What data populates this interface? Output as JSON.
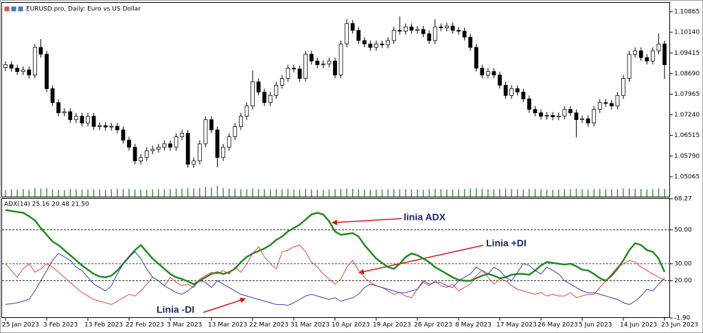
{
  "chart_data": [
    {
      "type": "candlestick",
      "title": "EURUSD.pro, Daily:  Euro vs US Dollar",
      "categories": [
        "25 Jan 2023",
        null,
        null,
        null,
        null,
        null,
        null,
        "3 Feb 2023",
        null,
        null,
        null,
        null,
        null,
        null,
        "13 Feb 2023",
        null,
        null,
        null,
        null,
        null,
        null,
        "22 Feb 2023",
        null,
        null,
        null,
        null,
        null,
        null,
        "3 Mar 2023",
        null,
        null,
        null,
        null,
        null,
        null,
        "13 Mar 2023",
        null,
        null,
        null,
        null,
        null,
        null,
        "22 Mar 2023",
        null,
        null,
        null,
        null,
        null,
        null,
        "31 Mar 2023",
        null,
        null,
        null,
        null,
        null,
        null,
        "10 Apr 2023",
        null,
        null,
        null,
        null,
        null,
        null,
        "19 Apr 2023",
        null,
        null,
        null,
        null,
        null,
        null,
        "28 Apr 2023",
        null,
        null,
        null,
        null,
        null,
        null,
        "8 May 2023",
        null,
        null,
        null,
        null,
        null,
        null,
        "17 May 2023",
        null,
        null,
        null,
        null,
        null,
        null,
        "26 May 2023",
        null,
        null,
        null,
        null,
        null,
        null,
        "5 Jun 2023",
        null,
        null,
        null,
        null,
        null,
        null,
        "14 Jun 2023",
        null,
        null,
        null,
        null,
        null,
        null,
        "23 Jun 2023"
      ],
      "open": [
        1.089,
        1.09,
        1.0888,
        1.0876,
        1.0882,
        1.0864,
        1.0961,
        1.0937,
        1.0816,
        1.0767,
        1.0731,
        1.0735,
        1.0707,
        1.0719,
        1.0695,
        1.0719,
        1.0683,
        1.0686,
        1.0681,
        1.0684,
        1.0671,
        1.0635,
        1.061,
        1.0562,
        1.0574,
        1.0598,
        1.0603,
        1.061,
        1.0622,
        1.061,
        1.0647,
        1.0659,
        1.055,
        1.0562,
        1.0622,
        1.0707,
        1.0671,
        1.0574,
        1.061,
        1.0647,
        1.0683,
        1.0719,
        1.0755,
        1.084,
        1.0804,
        1.0767,
        1.0792,
        1.0828,
        1.0852,
        1.0888,
        1.0885,
        1.0852,
        1.0937,
        1.0913,
        1.09,
        1.0903,
        1.0913,
        1.0864,
        1.0973,
        1.1045,
        1.1021,
        1.0985,
        1.0973,
        1.0961,
        1.0973,
        1.097,
        1.0985,
        1.1021,
        1.1018,
        1.1033,
        1.1021,
        1.1024,
        1.1009,
        1.0985,
        1.1033,
        1.103,
        1.1036,
        1.1021,
        1.1018,
        1.0997,
        1.0961,
        1.0888,
        1.0864,
        1.0876,
        1.0864,
        1.0828,
        1.0792,
        1.0816,
        1.0804,
        1.078,
        1.0743,
        1.0731,
        1.0719,
        1.0722,
        1.0717,
        1.072,
        1.0743,
        1.0731,
        1.0707,
        1.071,
        1.0695,
        1.0743,
        1.0767,
        1.0764,
        1.0755,
        1.0792,
        1.0852,
        1.0937,
        1.0949,
        1.0925,
        1.0913,
        1.0949,
        1.0973
      ],
      "high": [
        1.0912,
        1.0912,
        1.09,
        1.0894,
        1.0894,
        1.0973,
        1.099,
        1.0949,
        1.0828,
        1.0779,
        1.0747,
        1.0747,
        1.0731,
        1.0731,
        1.0731,
        1.0731,
        1.0698,
        1.0698,
        1.0696,
        1.0696,
        1.0683,
        1.0647,
        1.0622,
        1.0586,
        1.061,
        1.0615,
        1.0622,
        1.0634,
        1.0634,
        1.0659,
        1.0671,
        1.0671,
        1.0574,
        1.0634,
        1.0719,
        1.0719,
        1.0683,
        1.0622,
        1.0659,
        1.0695,
        1.0731,
        1.0767,
        1.088,
        1.0852,
        1.0816,
        1.0804,
        1.084,
        1.0864,
        1.09,
        1.09,
        1.0897,
        1.0949,
        1.0949,
        1.0925,
        1.0915,
        1.0925,
        1.0925,
        1.0985,
        1.106,
        1.1057,
        1.1033,
        1.0997,
        1.0985,
        1.0985,
        1.0985,
        1.0997,
        1.1033,
        1.107,
        1.1045,
        1.1045,
        1.1036,
        1.1036,
        1.1021,
        1.106,
        1.1045,
        1.1048,
        1.1048,
        1.1033,
        1.103,
        1.1009,
        1.0973,
        1.09,
        1.0888,
        1.0888,
        1.0876,
        1.084,
        1.0828,
        1.0828,
        1.0816,
        1.0792,
        1.0755,
        1.0743,
        1.0734,
        1.0734,
        1.0732,
        1.0755,
        1.0755,
        1.0743,
        1.0722,
        1.0722,
        1.0755,
        1.0779,
        1.0779,
        1.0776,
        1.0804,
        1.0864,
        1.0949,
        1.0961,
        1.0961,
        1.0937,
        1.0961,
        1.101,
        1.0985
      ],
      "low": [
        1.0878,
        1.0876,
        1.0864,
        1.0864,
        1.0852,
        1.0852,
        1.0925,
        1.0804,
        1.0755,
        1.0719,
        1.0719,
        1.0695,
        1.0695,
        1.0683,
        1.0683,
        1.0671,
        1.0671,
        1.0669,
        1.0669,
        1.0659,
        1.0623,
        1.0598,
        1.055,
        1.055,
        1.0562,
        1.0586,
        1.0591,
        1.0598,
        1.0598,
        1.0598,
        1.0635,
        1.0538,
        1.0538,
        1.055,
        1.061,
        1.0659,
        1.054,
        1.0562,
        1.0598,
        1.0635,
        1.0671,
        1.0707,
        1.0743,
        1.0792,
        1.0755,
        1.0755,
        1.078,
        1.0816,
        1.084,
        1.0873,
        1.084,
        1.084,
        1.0901,
        1.0888,
        1.0888,
        1.0891,
        1.0852,
        1.0852,
        1.0961,
        1.1009,
        1.0973,
        1.0961,
        1.0949,
        1.0949,
        1.0958,
        1.0958,
        1.0973,
        1.1006,
        1.1006,
        1.1009,
        1.1009,
        1.0997,
        1.0973,
        1.0973,
        1.1018,
        1.1018,
        1.1009,
        1.1006,
        1.0985,
        1.0949,
        1.0876,
        1.0852,
        1.0852,
        1.0852,
        1.0816,
        1.078,
        1.078,
        1.0792,
        1.0768,
        1.0731,
        1.0719,
        1.0707,
        1.0707,
        1.0705,
        1.0705,
        1.0708,
        1.0719,
        1.0645,
        1.0695,
        1.0683,
        1.0683,
        1.0731,
        1.0752,
        1.0743,
        1.0743,
        1.078,
        1.084,
        1.0925,
        1.0913,
        1.0901,
        1.0901,
        1.0937,
        1.085
      ],
      "close": [
        1.09,
        1.0888,
        1.0876,
        1.0882,
        1.0864,
        1.0961,
        1.0937,
        1.0816,
        1.0767,
        1.0731,
        1.0735,
        1.0707,
        1.0719,
        1.0695,
        1.0719,
        1.0683,
        1.0686,
        1.0681,
        1.0684,
        1.0671,
        1.0635,
        1.061,
        1.0562,
        1.0574,
        1.0598,
        1.0603,
        1.061,
        1.0622,
        1.061,
        1.0647,
        1.0659,
        1.055,
        1.0562,
        1.0622,
        1.0707,
        1.0671,
        1.0574,
        1.061,
        1.0647,
        1.0683,
        1.0719,
        1.0755,
        1.084,
        1.0804,
        1.0767,
        1.0792,
        1.0828,
        1.0852,
        1.0888,
        1.0885,
        1.0852,
        1.0937,
        1.0913,
        1.09,
        1.0903,
        1.0913,
        1.0864,
        1.0973,
        1.1045,
        1.1021,
        1.0985,
        1.0973,
        1.0961,
        1.0973,
        1.097,
        1.0985,
        1.1021,
        1.1018,
        1.1033,
        1.1021,
        1.1024,
        1.1009,
        1.0985,
        1.1033,
        1.103,
        1.1036,
        1.1021,
        1.1018,
        1.0997,
        1.0961,
        1.0888,
        1.0864,
        1.0876,
        1.0864,
        1.0828,
        1.0792,
        1.0816,
        1.0804,
        1.078,
        1.0743,
        1.0731,
        1.0719,
        1.0722,
        1.0717,
        1.072,
        1.0743,
        1.0731,
        1.0707,
        1.071,
        1.0695,
        1.0743,
        1.0767,
        1.0764,
        1.0755,
        1.0792,
        1.0852,
        1.0937,
        1.0949,
        1.0925,
        1.0913,
        1.0949,
        1.0973,
        1.09
      ],
      "volume": [
        55,
        60,
        58,
        62,
        57,
        70,
        65,
        68,
        60,
        58,
        55,
        62,
        60,
        57,
        59,
        61,
        58,
        56,
        60,
        63,
        62,
        65,
        60,
        58,
        57,
        59,
        61,
        60,
        62,
        66,
        64,
        70,
        68,
        72,
        80,
        75,
        90,
        70,
        66,
        64,
        62,
        60,
        68,
        63,
        61,
        59,
        62,
        60,
        64,
        58,
        57,
        63,
        60,
        58,
        56,
        59,
        61,
        62,
        66,
        63,
        60,
        58,
        57,
        59,
        56,
        58,
        61,
        60,
        62,
        59,
        58,
        57,
        60,
        63,
        61,
        59,
        58,
        60,
        62,
        66,
        70,
        64,
        61,
        60,
        62,
        65,
        63,
        61,
        60,
        64,
        62,
        60,
        58,
        57,
        59,
        63,
        61,
        66,
        60,
        58,
        62,
        64,
        60,
        59,
        61,
        66,
        68,
        64,
        62,
        60,
        63,
        67,
        65
      ],
      "candle_colors": {
        "up": "#ffffff",
        "down": "#000000",
        "outline": "#000000"
      },
      "volume_color": "#2e8b2e",
      "ylim": [
        1.04364,
        1.11179
      ],
      "yticks": [
        1.10865,
        {
          "value": 1.1014,
          "label": "1.10140"
        },
        1.09415,
        {
          "value": 1.0869,
          "label": "1.08690"
        },
        1.07965,
        {
          "value": 1.0724,
          "label": "1.07240"
        },
        1.06515,
        {
          "value": 1.0579,
          "label": "1.05790"
        },
        1.05065
      ]
    },
    {
      "type": "line",
      "title": "ADX(14) 25.16 20.48 21.50",
      "series": [
        {
          "name": "ADX",
          "color": "#1e8a1e",
          "width": 2.5,
          "values": [
            61.6,
            61,
            60.5,
            60,
            58,
            55.5,
            51,
            47,
            43,
            41,
            38,
            35,
            32,
            29,
            26.5,
            24,
            22.5,
            22,
            23,
            26,
            30,
            34,
            38,
            41,
            37,
            33,
            30,
            27,
            24,
            22,
            21,
            19.5,
            18,
            20,
            22,
            24,
            25,
            24,
            25,
            27,
            31,
            34,
            36,
            37.5,
            39,
            41,
            44,
            46,
            49,
            51,
            53,
            56,
            59,
            60,
            59,
            55,
            49,
            47,
            47.5,
            48,
            46,
            41,
            37,
            33,
            30.5,
            28,
            27,
            30,
            34,
            36,
            35,
            33,
            31,
            28,
            26,
            24,
            22,
            20.5,
            20,
            20,
            21.5,
            23,
            24,
            23,
            21.5,
            22,
            23.5,
            24,
            24,
            23.5,
            26,
            29,
            31,
            30.5,
            30,
            29.5,
            30,
            28.5,
            26.5,
            26,
            24,
            21.5,
            20,
            23,
            27,
            32,
            38,
            42,
            41,
            38,
            37,
            33,
            25.16
          ]
        },
        {
          "name": "+DI",
          "color": "#e0453a",
          "width": 1,
          "values": [
            30,
            26,
            22,
            27,
            30,
            25,
            27,
            30,
            28,
            25,
            22,
            19,
            16,
            13,
            11,
            9,
            8,
            7,
            6,
            8,
            10,
            12,
            11,
            14,
            18,
            22,
            20,
            17,
            22,
            19,
            17,
            18,
            16,
            21,
            23,
            25,
            24,
            26,
            24,
            28,
            25,
            30,
            36,
            40,
            34,
            30,
            27,
            37,
            38,
            40,
            41,
            37,
            31,
            28,
            24,
            21,
            18,
            21,
            28,
            32,
            26,
            22,
            19,
            17,
            16,
            14,
            12,
            13,
            11,
            10,
            15,
            19,
            17,
            20,
            17,
            16,
            18,
            14,
            16,
            18,
            23,
            26,
            22,
            18,
            21,
            20,
            17,
            15,
            14,
            13,
            12,
            13,
            11,
            12,
            11,
            11,
            13,
            10,
            11,
            12,
            12,
            16,
            20,
            24,
            28,
            30,
            32,
            31,
            28,
            26,
            24,
            22,
            20.48
          ]
        },
        {
          "name": "-DI",
          "color": "#3a3ab8",
          "width": 1,
          "values": [
            6,
            6.5,
            7,
            8,
            9,
            14,
            20,
            26,
            32,
            36,
            34,
            32,
            28,
            26,
            22,
            18,
            16,
            14,
            17,
            24,
            30,
            34,
            37,
            33,
            27,
            22,
            20,
            17,
            15,
            13,
            12,
            14,
            17,
            20,
            19,
            16,
            20,
            18,
            16,
            14,
            12,
            11,
            10,
            9,
            8,
            7,
            6,
            6,
            5.5,
            7,
            9,
            11,
            12,
            11,
            10,
            9,
            10,
            8,
            9,
            10,
            12,
            16,
            18,
            17,
            16,
            15,
            14,
            13,
            13,
            14,
            15,
            20,
            18,
            19,
            19,
            17,
            16,
            20,
            22,
            24,
            28,
            26,
            24,
            28,
            26,
            22,
            20,
            25,
            30,
            29,
            26,
            24,
            28,
            26,
            24,
            20,
            18,
            16,
            14,
            13,
            13,
            12,
            11,
            10,
            9,
            7,
            6,
            8,
            11,
            15,
            14,
            18,
            21.5
          ]
        }
      ],
      "levels": [
        50,
        30,
        20
      ],
      "ylim": [
        -1.9,
        68.27
      ],
      "yticks": [
        68.27,
        {
          "value": 50,
          "label": "50.00"
        },
        {
          "value": 30,
          "label": "30.00"
        },
        {
          "value": 20,
          "label": "20.00"
        },
        {
          "value": -1.9,
          "label": "-1.90"
        }
      ],
      "annotations": [
        "linia ADX",
        "Linia +DI",
        "Linia -DI"
      ]
    }
  ]
}
